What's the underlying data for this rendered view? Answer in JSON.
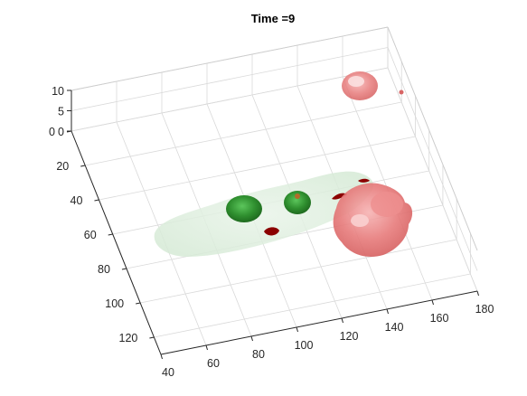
{
  "chart_data": {
    "type": "3d-isosurface",
    "title": "Time =9",
    "xlabel": "",
    "ylabel": "",
    "zlabel": "",
    "xlim": [
      40,
      180
    ],
    "ylim": [
      0,
      130
    ],
    "zlim": [
      0,
      10
    ],
    "x_ticks": [
      "40",
      "60",
      "80",
      "100",
      "120",
      "140",
      "160",
      "180"
    ],
    "y_ticks": [
      "0",
      "20",
      "40",
      "60",
      "80",
      "100",
      "120"
    ],
    "z_ticks": [
      "10",
      "5",
      "0"
    ],
    "grid": true,
    "colors": {
      "tissue": "#cfe8cf",
      "green_cells": "#2f8f2f",
      "red_cells": "#e05a5a",
      "dark_red_spots": "#8b0000",
      "grid": "#d9d9d9",
      "axis": "#262626"
    }
  }
}
